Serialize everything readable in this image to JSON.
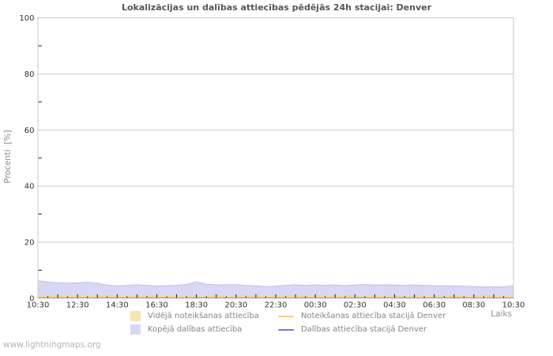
{
  "title": "Lokalizācijas un dalības attiecības pēdējās 24h stacijai: Denver",
  "watermark": "www.lightningmaps.org",
  "axes": {
    "y_label": "Procenti  [%]",
    "x_label": "Laiks"
  },
  "legend": {
    "items": [
      {
        "label": "Vidējā noteikšanas attiecība",
        "marker": "square",
        "color": "#fbe3b5"
      },
      {
        "label": "Kopējā dalības attiecība",
        "marker": "square",
        "color": "#d8d8f6"
      },
      {
        "label": "Noteikšanas attiecība stacijā Denver",
        "marker": "line",
        "color": "#fbce83"
      },
      {
        "label": "Dalības attiecība stacijā Denver",
        "marker": "line",
        "color": "#7575e0"
      }
    ]
  },
  "chart_data": {
    "type": "area",
    "title": "Lokalizācijas un dalības attiecības pēdējās 24h stacijai: Denver",
    "xlabel": "Laiks",
    "ylabel": "Procenti [%]",
    "ylim": [
      0,
      100
    ],
    "y_major_ticks": [
      0,
      20,
      40,
      60,
      80,
      100
    ],
    "y_minor_ticks": [
      10,
      30,
      50,
      70,
      90
    ],
    "grid": "horizontal",
    "legend_position": "bottom",
    "x_step_minutes": 30,
    "x_tick_labels": [
      "10:30",
      "12:30",
      "14:30",
      "16:30",
      "18:30",
      "20:30",
      "22:30",
      "00:30",
      "02:30",
      "04:30",
      "06:30",
      "08:30",
      "10:30"
    ],
    "series": [
      {
        "name": "Vidējā noteikšanas attiecība",
        "type": "area",
        "color": "#fae3b8",
        "stroke": "#eed3a4",
        "values": [
          0.5,
          0.5,
          0.4,
          0.5,
          0.6,
          0.5,
          0.5,
          0.4,
          0.5,
          0.6,
          0.5,
          0.4,
          0.5,
          0.5,
          0.6,
          0.5,
          0.5,
          0.4,
          0.5,
          0.6,
          0.5,
          0.5,
          0.4,
          0.5,
          0.5,
          0.6,
          0.5,
          0.4,
          0.5,
          0.6,
          0.5,
          0.5,
          0.4,
          0.5,
          0.6,
          0.5,
          0.4,
          0.5,
          0.5,
          0.6,
          0.5,
          0.5,
          0.4,
          0.5,
          0.6,
          0.5,
          0.5,
          0.4,
          0.5
        ]
      },
      {
        "name": "Kopējā dalības attiecība",
        "type": "area",
        "color": "#d8d8f6",
        "stroke": "#bfbfec",
        "values": [
          6.3,
          5.8,
          5.5,
          5.4,
          5.5,
          5.7,
          5.3,
          4.7,
          4.4,
          4.6,
          4.8,
          4.6,
          4.4,
          4.5,
          4.6,
          4.9,
          5.9,
          5.0,
          4.8,
          4.8,
          4.9,
          4.6,
          4.4,
          4.2,
          4.3,
          4.6,
          4.8,
          4.6,
          4.8,
          4.6,
          4.7,
          4.5,
          4.7,
          4.9,
          4.7,
          4.8,
          4.7,
          4.6,
          4.7,
          4.6,
          4.5,
          4.5,
          4.4,
          4.3,
          4.2,
          4.0,
          4.1,
          4.0,
          4.5
        ]
      },
      {
        "name": "Noteikšanas attiecība stacijā Denver",
        "type": "line",
        "color": "#fbce83",
        "values": [
          0.7,
          0.8,
          0.6,
          0.7,
          0.8,
          0.7,
          0.6,
          0.8,
          0.7,
          0.6,
          0.7,
          0.8,
          0.6,
          0.7,
          0.8,
          0.7,
          0.6,
          0.7,
          0.8,
          0.6,
          0.7,
          0.8,
          0.7,
          0.6,
          0.8,
          0.7,
          0.6,
          0.7,
          0.8,
          0.7,
          0.6,
          0.8,
          0.7,
          0.6,
          0.7,
          0.8,
          0.7,
          0.6,
          0.8,
          0.7,
          0.6,
          0.7,
          0.8,
          0.6,
          0.7,
          0.8,
          0.7,
          0.6,
          0.7
        ]
      },
      {
        "name": "Dalības attiecība stacijā Denver",
        "type": "line",
        "color": "#7575e0",
        "values": [
          0.1,
          0.1,
          0.1,
          0.1,
          0.1,
          0.1,
          0.1,
          0.1,
          0.1,
          0.1,
          0.1,
          0.1,
          0.1,
          0.1,
          0.1,
          0.1,
          0.1,
          0.1,
          0.1,
          0.1,
          0.1,
          0.1,
          0.1,
          0.1,
          0.1,
          0.1,
          0.1,
          0.1,
          0.1,
          0.1,
          0.1,
          0.1,
          0.1,
          0.1,
          0.1,
          0.1,
          0.1,
          0.1,
          0.1,
          0.1,
          0.1,
          0.1,
          0.1,
          0.1,
          0.1,
          0.1,
          0.1,
          0.1,
          0.1
        ]
      }
    ]
  }
}
